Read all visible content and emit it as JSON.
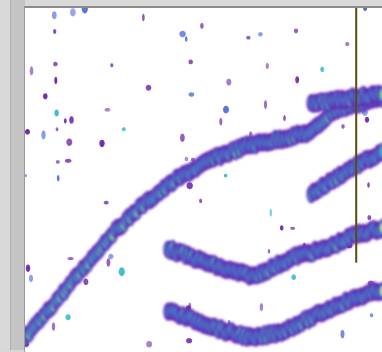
{
  "view": {
    "kind": "spectral-density-heatmap",
    "background": "#ffffff",
    "frame_color": "#d9d9d9",
    "cursor_color": "#5a4a10",
    "palette": [
      "#6a1fa8",
      "#3a5fd8",
      "#2bb6c8",
      "#8cd84a",
      "#f0e030",
      "#f38a1a",
      "#e8201a",
      "#c81418"
    ]
  },
  "traces": [
    {
      "id": "upper",
      "points": [
        [
          0.0,
          0.96
        ],
        [
          0.08,
          0.86
        ],
        [
          0.16,
          0.76
        ],
        [
          0.24,
          0.66
        ],
        [
          0.32,
          0.58
        ],
        [
          0.42,
          0.5
        ],
        [
          0.52,
          0.44
        ],
        [
          0.62,
          0.4
        ],
        [
          0.72,
          0.38
        ],
        [
          0.8,
          0.36
        ],
        [
          0.86,
          0.3
        ],
        [
          0.92,
          0.28
        ],
        [
          1.0,
          0.26
        ]
      ],
      "strength": 1.0
    },
    {
      "id": "middle",
      "points": [
        [
          0.4,
          0.7
        ],
        [
          0.48,
          0.73
        ],
        [
          0.56,
          0.76
        ],
        [
          0.64,
          0.78
        ],
        [
          0.7,
          0.75
        ],
        [
          0.76,
          0.72
        ],
        [
          0.84,
          0.7
        ],
        [
          0.92,
          0.66
        ],
        [
          1.0,
          0.64
        ]
      ],
      "strength": 0.75
    },
    {
      "id": "lower",
      "points": [
        [
          0.4,
          0.88
        ],
        [
          0.48,
          0.91
        ],
        [
          0.56,
          0.94
        ],
        [
          0.64,
          0.96
        ],
        [
          0.72,
          0.94
        ],
        [
          0.8,
          0.9
        ],
        [
          0.88,
          0.86
        ],
        [
          0.96,
          0.83
        ],
        [
          1.0,
          0.82
        ]
      ],
      "strength": 0.85
    },
    {
      "id": "top-right",
      "points": [
        [
          0.8,
          0.28
        ],
        [
          0.86,
          0.27
        ],
        [
          0.92,
          0.26
        ],
        [
          1.0,
          0.25
        ]
      ],
      "strength": 0.7
    },
    {
      "id": "faint-right",
      "points": [
        [
          0.8,
          0.54
        ],
        [
          0.86,
          0.5
        ],
        [
          0.92,
          0.46
        ],
        [
          1.0,
          0.42
        ]
      ],
      "strength": 0.45
    }
  ],
  "cursor": {
    "x": 0.925
  }
}
